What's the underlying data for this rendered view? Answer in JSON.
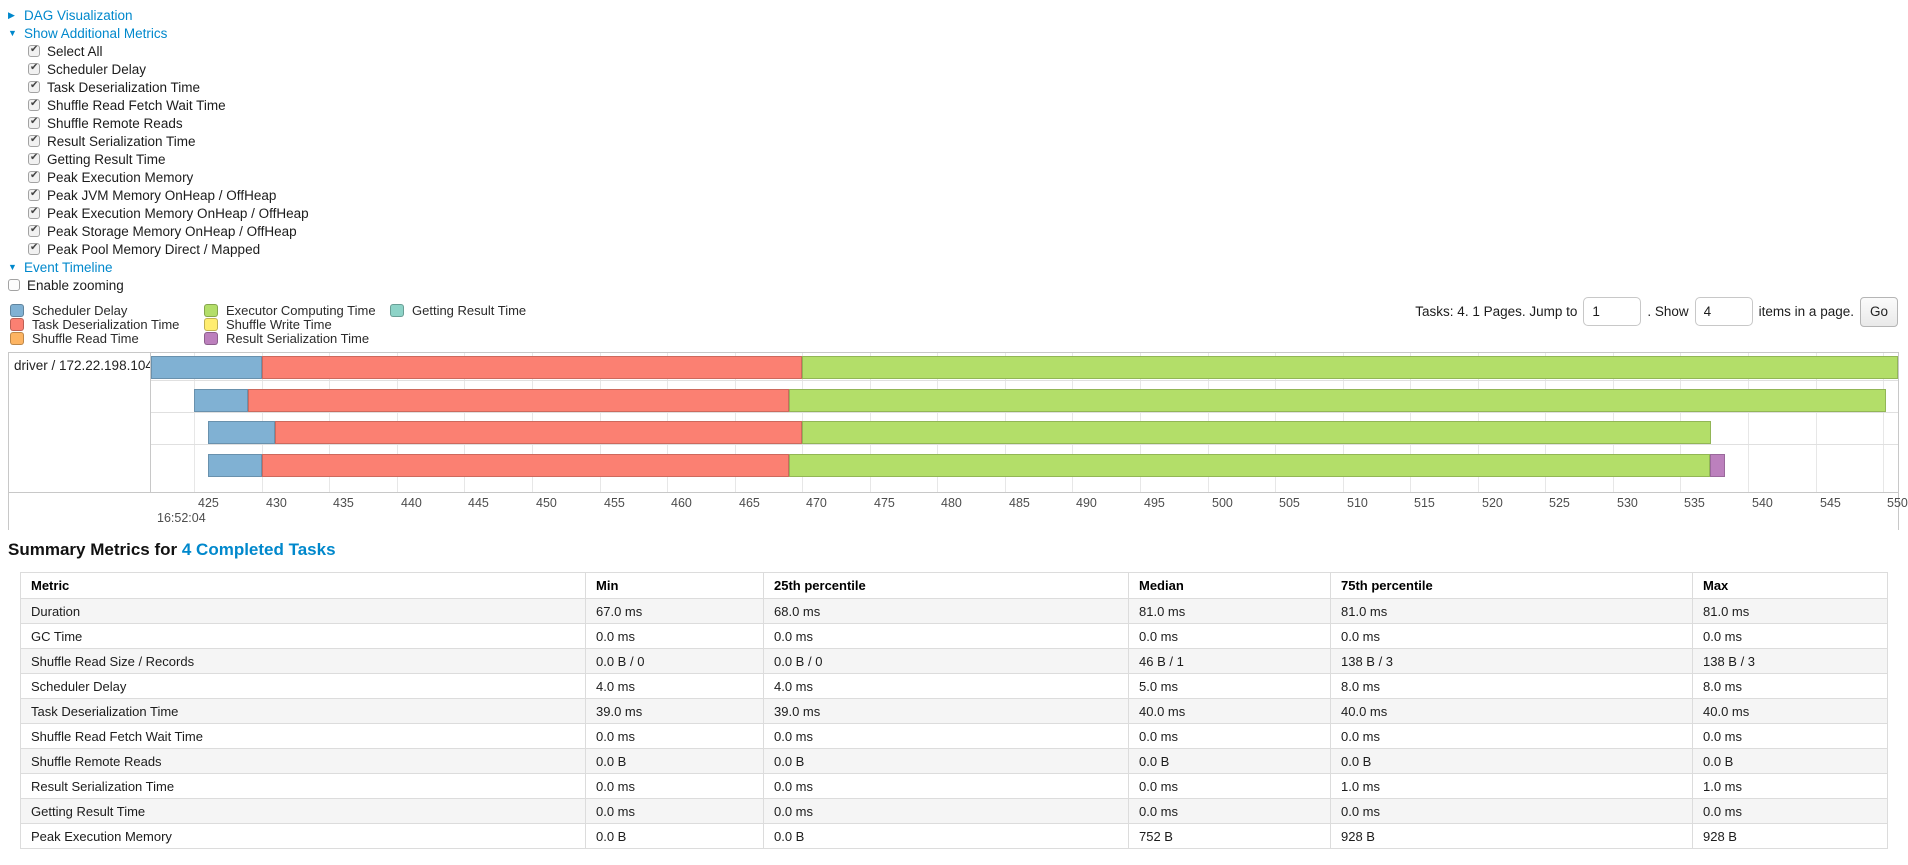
{
  "colors": {
    "link": "#0088cc",
    "scheduler_delay": "#80B1D3",
    "task_deserialization": "#FB8072",
    "shuffle_read": "#FDB462",
    "executor_computing": "#B3DE69",
    "shuffle_write": "#FFED6F",
    "result_serialization": "#BC80BD",
    "getting_result": "#8DD3C7"
  },
  "dag": {
    "label": "DAG Visualization"
  },
  "metrics_panel": {
    "title": "Show Additional Metrics",
    "items": [
      "Select All",
      "Scheduler Delay",
      "Task Deserialization Time",
      "Shuffle Read Fetch Wait Time",
      "Shuffle Remote Reads",
      "Result Serialization Time",
      "Getting Result Time",
      "Peak Execution Memory",
      "Peak JVM Memory OnHeap / OffHeap",
      "Peak Execution Memory OnHeap / OffHeap",
      "Peak Storage Memory OnHeap / OffHeap",
      "Peak Pool Memory Direct / Mapped"
    ]
  },
  "event_timeline": {
    "title": "Event Timeline",
    "enable_zooming": "Enable zooming"
  },
  "pagination": {
    "text_before": "Tasks: 4. 1 Pages. Jump to",
    "jump_value": "1",
    "text_mid": ". Show",
    "show_value": "4",
    "text_after": "items in a page.",
    "go_label": "Go"
  },
  "chart_data": {
    "type": "timeline",
    "group_label": "driver / 172.22.198.104",
    "x_axis": {
      "major_label": "16:52:04",
      "tick_start": 425,
      "tick_end": 550,
      "tick_step": 5,
      "unit": "ms within 16:52:04",
      "domain": [
        421.8,
        551.1
      ]
    },
    "legend_columns": [
      [
        {
          "label": "Scheduler Delay",
          "kind": "scheduler_delay"
        },
        {
          "label": "Task Deserialization Time",
          "kind": "task_deserialization"
        },
        {
          "label": "Shuffle Read Time",
          "kind": "shuffle_read"
        }
      ],
      [
        {
          "label": "Executor Computing Time",
          "kind": "executor_computing"
        },
        {
          "label": "Shuffle Write Time",
          "kind": "shuffle_write"
        },
        {
          "label": "Result Serialization Time",
          "kind": "result_serialization"
        }
      ],
      [
        {
          "label": "Getting Result Time",
          "kind": "getting_result"
        }
      ]
    ],
    "tasks": [
      {
        "segments": [
          {
            "kind": "scheduler_delay",
            "start": 421.8,
            "end": 430.0
          },
          {
            "kind": "task_deserialization",
            "start": 430.0,
            "end": 470.0
          },
          {
            "kind": "executor_computing",
            "start": 470.0,
            "end": 551.1
          }
        ]
      },
      {
        "segments": [
          {
            "kind": "scheduler_delay",
            "start": 425.0,
            "end": 429.0
          },
          {
            "kind": "task_deserialization",
            "start": 429.0,
            "end": 469.0
          },
          {
            "kind": "executor_computing",
            "start": 469.0,
            "end": 550.2
          }
        ]
      },
      {
        "segments": [
          {
            "kind": "scheduler_delay",
            "start": 426.0,
            "end": 431.0
          },
          {
            "kind": "task_deserialization",
            "start": 431.0,
            "end": 470.0
          },
          {
            "kind": "executor_computing",
            "start": 470.0,
            "end": 537.3
          }
        ]
      },
      {
        "segments": [
          {
            "kind": "scheduler_delay",
            "start": 426.0,
            "end": 430.0
          },
          {
            "kind": "task_deserialization",
            "start": 430.0,
            "end": 469.0
          },
          {
            "kind": "executor_computing",
            "start": 469.0,
            "end": 537.2
          },
          {
            "kind": "result_serialization",
            "start": 537.2,
            "end": 538.3
          }
        ]
      }
    ]
  },
  "summary": {
    "title_prefix": "Summary Metrics for",
    "title_link": "4 Completed Tasks",
    "columns": [
      "Metric",
      "Min",
      "25th percentile",
      "Median",
      "75th percentile",
      "Max"
    ],
    "rows": [
      [
        "Duration",
        "67.0 ms",
        "68.0 ms",
        "81.0 ms",
        "81.0 ms",
        "81.0 ms"
      ],
      [
        "GC Time",
        "0.0 ms",
        "0.0 ms",
        "0.0 ms",
        "0.0 ms",
        "0.0 ms"
      ],
      [
        "Shuffle Read Size / Records",
        "0.0 B / 0",
        "0.0 B / 0",
        "46 B / 1",
        "138 B / 3",
        "138 B / 3"
      ],
      [
        "Scheduler Delay",
        "4.0 ms",
        "4.0 ms",
        "5.0 ms",
        "8.0 ms",
        "8.0 ms"
      ],
      [
        "Task Deserialization Time",
        "39.0 ms",
        "39.0 ms",
        "40.0 ms",
        "40.0 ms",
        "40.0 ms"
      ],
      [
        "Shuffle Read Fetch Wait Time",
        "0.0 ms",
        "0.0 ms",
        "0.0 ms",
        "0.0 ms",
        "0.0 ms"
      ],
      [
        "Shuffle Remote Reads",
        "0.0 B",
        "0.0 B",
        "0.0 B",
        "0.0 B",
        "0.0 B"
      ],
      [
        "Result Serialization Time",
        "0.0 ms",
        "0.0 ms",
        "0.0 ms",
        "1.0 ms",
        "1.0 ms"
      ],
      [
        "Getting Result Time",
        "0.0 ms",
        "0.0 ms",
        "0.0 ms",
        "0.0 ms",
        "0.0 ms"
      ],
      [
        "Peak Execution Memory",
        "0.0 B",
        "0.0 B",
        "752 B",
        "928 B",
        "928 B"
      ]
    ]
  }
}
